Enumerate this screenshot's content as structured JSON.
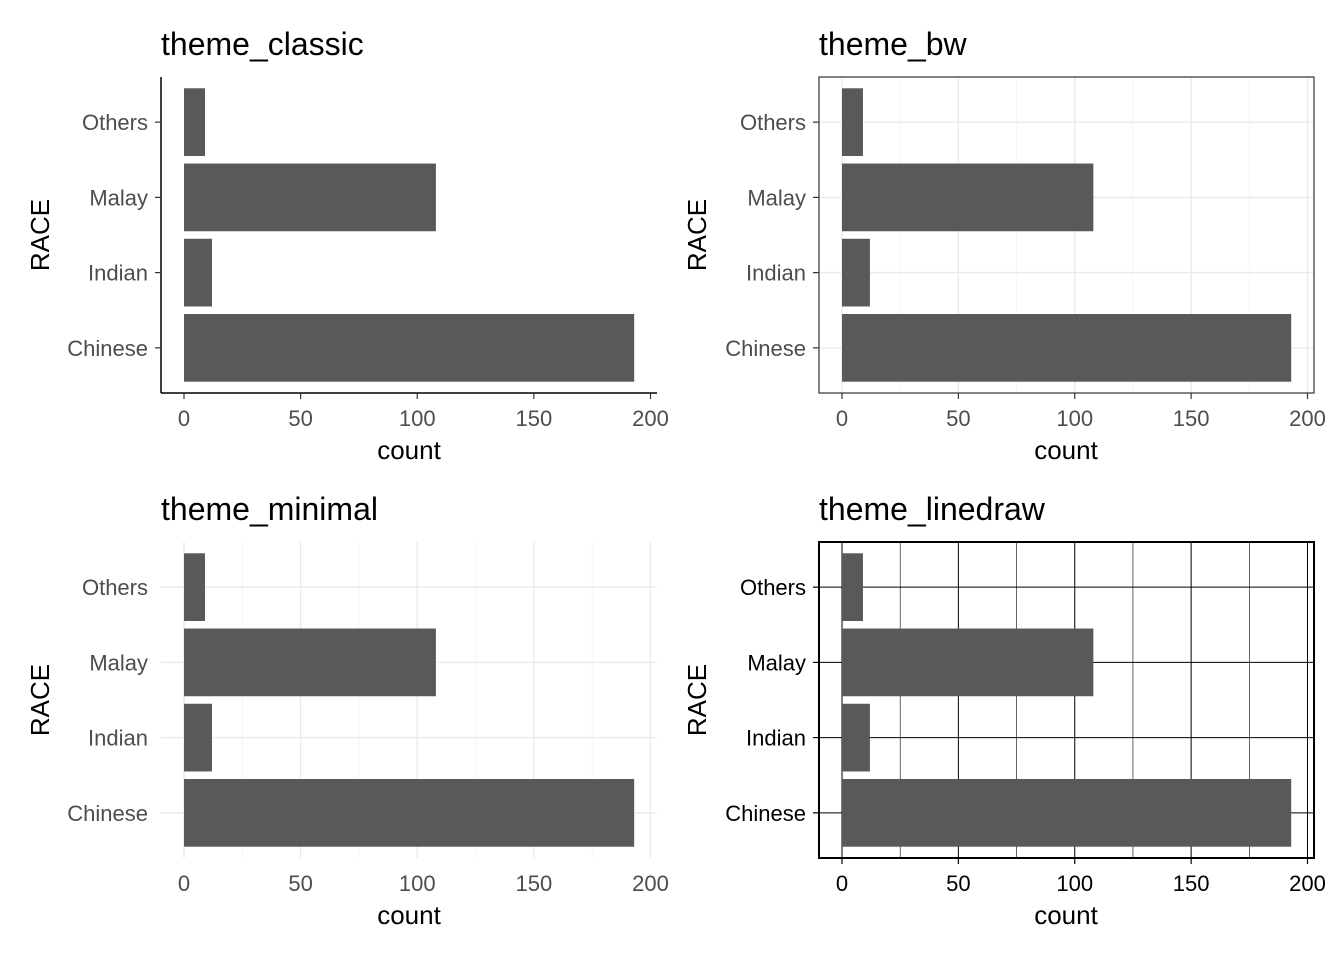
{
  "chart_data": [
    {
      "type": "bar",
      "orientation": "horizontal",
      "theme": "classic",
      "title": "theme_classic",
      "xlabel": "count",
      "ylabel": "RACE",
      "categories": [
        "Chinese",
        "Indian",
        "Malay",
        "Others"
      ],
      "values": [
        193,
        12,
        108,
        9
      ],
      "xlim": [
        0,
        200
      ],
      "xticks": [
        "0",
        "50",
        "100",
        "150",
        "200"
      ],
      "bar_color": "#595959",
      "grid": false
    },
    {
      "type": "bar",
      "orientation": "horizontal",
      "theme": "bw",
      "title": "theme_bw",
      "xlabel": "count",
      "ylabel": "RACE",
      "categories": [
        "Chinese",
        "Indian",
        "Malay",
        "Others"
      ],
      "values": [
        193,
        12,
        108,
        9
      ],
      "xlim": [
        0,
        200
      ],
      "xticks": [
        "0",
        "50",
        "100",
        "150",
        "200"
      ],
      "bar_color": "#595959",
      "grid": true
    },
    {
      "type": "bar",
      "orientation": "horizontal",
      "theme": "minimal",
      "title": "theme_minimal",
      "xlabel": "count",
      "ylabel": "RACE",
      "categories": [
        "Chinese",
        "Indian",
        "Malay",
        "Others"
      ],
      "values": [
        193,
        12,
        108,
        9
      ],
      "xlim": [
        0,
        200
      ],
      "xticks": [
        "0",
        "50",
        "100",
        "150",
        "200"
      ],
      "bar_color": "#595959",
      "grid": true
    },
    {
      "type": "bar",
      "orientation": "horizontal",
      "theme": "linedraw",
      "title": "theme_linedraw",
      "xlabel": "count",
      "ylabel": "RACE",
      "categories": [
        "Chinese",
        "Indian",
        "Malay",
        "Others"
      ],
      "values": [
        193,
        12,
        108,
        9
      ],
      "xlim": [
        0,
        200
      ],
      "xticks": [
        "0",
        "50",
        "100",
        "150",
        "200"
      ],
      "bar_color": "#595959",
      "grid": true
    }
  ]
}
